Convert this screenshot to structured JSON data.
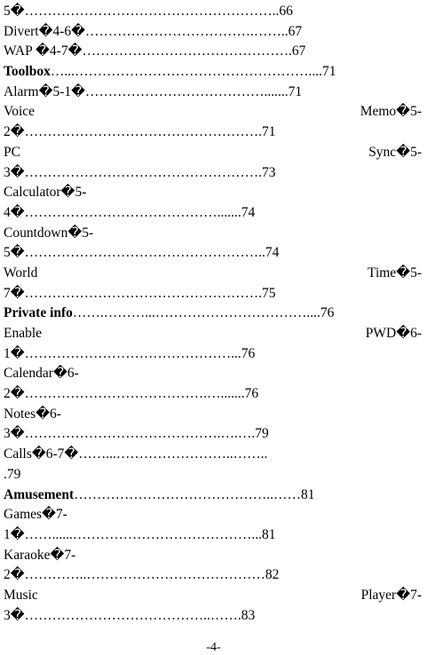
{
  "toc": {
    "lines": [
      "5�………………………………………………..66",
      "Divert�4-6�……………………………….……..67",
      "WAP �4-7�……………………………………….67",
      "Toolbox",
      "…...……………………………………………....71",
      "Alarm�5-1�………………………………….......71",
      "Voice",
      "Memo�5-",
      "2�…………………………………………….71",
      "PC",
      "Sync�5-",
      "3�…………………………………………….73",
      "Calculator�5-",
      "4�…………………………………….......74",
      "Countdown�5-",
      "5�……………………………………………..74",
      "World",
      "Time�5-",
      "7�…………………………………………….75",
      "Private info",
      "…….………...……………………………....76",
      "Enable",
      "PWD�6-",
      "1�………………………………………...76",
      "Calendar�6-",
      "2�………………………………….….......76",
      "Notes�6-",
      "3�…………………………………….….….79",
      "Calls�6-7�……...……………………..……..",
      ".79",
      "Amusement",
      "……………………………………..……81",
      "Games�7-",
      "1�……......…………………………………...81",
      "Karaoke�7-",
      "2�…………..…………………………………82",
      "Music",
      "Player�7-",
      "3�…………………………………..…….83"
    ]
  },
  "footer": {
    "page_number": "-4-"
  }
}
